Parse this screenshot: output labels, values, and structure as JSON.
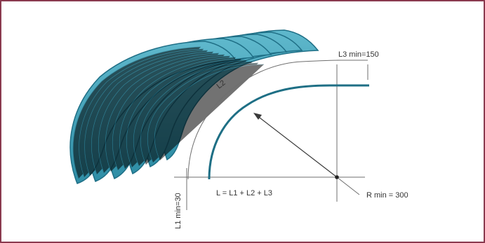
{
  "diagram": {
    "labels": {
      "l2": "L2",
      "l3_min": "L3 min=150",
      "l1_min": "L1 min=30",
      "formula": "L = L1 + L2 + L3",
      "r_min": "R min = 300"
    },
    "colors": {
      "frame_border": "#8a3a4f",
      "sheet_fill": "#4aa9be",
      "sheet_stroke": "#1f6f86",
      "profile_curve": "#1e6f85",
      "guide_line": "#6f6f6f"
    }
  }
}
